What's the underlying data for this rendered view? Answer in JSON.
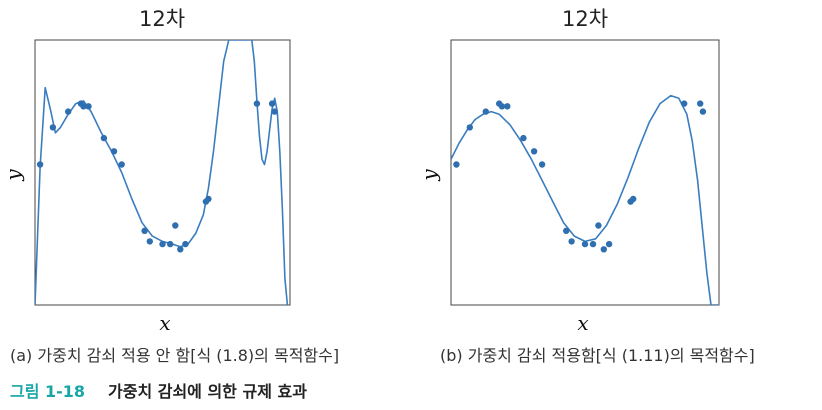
{
  "chart_data": [
    {
      "type": "scatter",
      "title": "12차",
      "xlabel": "x",
      "ylabel": "y",
      "caption": "(a) 가중치 감쇠 적용 안 함[식 (1.8)의 목적함수]",
      "xlim": [
        0,
        1
      ],
      "ylim": [
        0,
        1
      ],
      "colors": {
        "points": "#2f6fb0",
        "curve": "#3a7dc0"
      },
      "series": [
        {
          "kind": "points",
          "x": [
            0.02,
            0.07,
            0.13,
            0.18,
            0.19,
            0.21,
            0.27,
            0.31,
            0.34,
            0.43,
            0.45,
            0.5,
            0.53,
            0.55,
            0.57,
            0.59,
            0.67,
            0.68,
            0.87,
            0.93,
            0.94
          ],
          "y": [
            0.53,
            0.67,
            0.73,
            0.76,
            0.75,
            0.75,
            0.63,
            0.58,
            0.53,
            0.28,
            0.24,
            0.23,
            0.23,
            0.3,
            0.21,
            0.23,
            0.39,
            0.4,
            0.76,
            0.76,
            0.73
          ]
        },
        {
          "kind": "curve",
          "x": [
            0.0,
            0.02,
            0.04,
            0.06,
            0.08,
            0.1,
            0.13,
            0.16,
            0.19,
            0.22,
            0.26,
            0.3,
            0.34,
            0.38,
            0.42,
            0.46,
            0.5,
            0.54,
            0.57,
            0.6,
            0.63,
            0.66,
            0.68,
            0.7,
            0.72,
            0.74,
            0.76,
            0.78,
            0.8,
            0.82,
            0.84,
            0.85,
            0.86,
            0.87,
            0.88,
            0.89,
            0.9,
            0.91,
            0.92,
            0.93,
            0.94,
            0.95,
            0.96,
            0.97,
            0.98,
            0.99
          ],
          "y": [
            0.0,
            0.52,
            0.82,
            0.74,
            0.65,
            0.67,
            0.72,
            0.76,
            0.77,
            0.73,
            0.65,
            0.58,
            0.5,
            0.4,
            0.31,
            0.26,
            0.24,
            0.23,
            0.22,
            0.23,
            0.27,
            0.34,
            0.44,
            0.58,
            0.75,
            0.92,
            1.0,
            1.0,
            1.0,
            1.0,
            1.0,
            1.0,
            0.92,
            0.77,
            0.64,
            0.55,
            0.53,
            0.58,
            0.66,
            0.74,
            0.78,
            0.73,
            0.58,
            0.36,
            0.1,
            0.0
          ]
        }
      ]
    },
    {
      "type": "scatter",
      "title": "12차",
      "xlabel": "x",
      "ylabel": "y",
      "caption": "(b) 가중치 감쇠 적용함[식 (1.11)의 목적함수]",
      "xlim": [
        0,
        1
      ],
      "ylim": [
        0,
        1
      ],
      "colors": {
        "points": "#2f6fb0",
        "curve": "#3a7dc0"
      },
      "series": [
        {
          "kind": "points",
          "x": [
            0.02,
            0.07,
            0.13,
            0.18,
            0.19,
            0.21,
            0.27,
            0.31,
            0.34,
            0.43,
            0.45,
            0.5,
            0.53,
            0.55,
            0.57,
            0.59,
            0.67,
            0.68,
            0.87,
            0.93,
            0.94
          ],
          "y": [
            0.53,
            0.67,
            0.73,
            0.76,
            0.75,
            0.75,
            0.63,
            0.58,
            0.53,
            0.28,
            0.24,
            0.23,
            0.23,
            0.3,
            0.21,
            0.23,
            0.39,
            0.4,
            0.76,
            0.76,
            0.73
          ]
        },
        {
          "kind": "curve",
          "x": [
            0.0,
            0.03,
            0.06,
            0.09,
            0.12,
            0.15,
            0.18,
            0.22,
            0.26,
            0.3,
            0.34,
            0.38,
            0.42,
            0.46,
            0.5,
            0.54,
            0.58,
            0.62,
            0.66,
            0.7,
            0.74,
            0.78,
            0.82,
            0.85,
            0.88,
            0.9,
            0.92,
            0.94,
            0.955,
            0.97,
            0.985,
            1.0
          ],
          "y": [
            0.55,
            0.61,
            0.66,
            0.7,
            0.72,
            0.73,
            0.72,
            0.68,
            0.62,
            0.55,
            0.47,
            0.39,
            0.31,
            0.26,
            0.24,
            0.25,
            0.3,
            0.38,
            0.48,
            0.59,
            0.69,
            0.76,
            0.79,
            0.78,
            0.72,
            0.62,
            0.47,
            0.27,
            0.12,
            0.0,
            0.0,
            0.0
          ]
        }
      ]
    }
  ],
  "figure_caption": {
    "number": "그림 1-18",
    "text": "가중치 감쇠에 의한 규제 효과",
    "number_color": "#17a5a5"
  }
}
